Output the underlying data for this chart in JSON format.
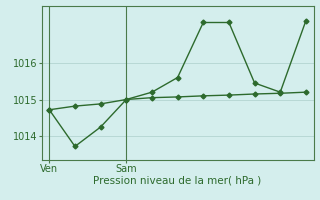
{
  "bg_color": "#d4eeed",
  "grid_color": "#b8d8d5",
  "line_color": "#2d6a2d",
  "line1_x": [
    0,
    1,
    2,
    3,
    4,
    5,
    6,
    7,
    8,
    9,
    10
  ],
  "line1_y": [
    1014.72,
    1014.82,
    1014.88,
    1015.0,
    1015.05,
    1015.07,
    1015.1,
    1015.12,
    1015.15,
    1015.17,
    1015.2
  ],
  "line2_x": [
    0,
    1,
    2,
    3,
    4,
    5,
    6,
    7,
    8,
    9,
    10
  ],
  "line2_y": [
    1014.72,
    1013.72,
    1014.25,
    1015.0,
    1015.2,
    1015.6,
    1017.1,
    1017.1,
    1015.45,
    1015.2,
    1017.15
  ],
  "ven_x": 0,
  "sam_x": 3,
  "xtick_positions": [
    0,
    3
  ],
  "xtick_labels": [
    "Ven",
    "Sam"
  ],
  "ytick_positions": [
    1014,
    1015,
    1016
  ],
  "ytick_labels": [
    "1014",
    "1015",
    "1016"
  ],
  "xlabel": "Pression niveau de la mer( hPa )",
  "ylim": [
    1013.35,
    1017.55
  ],
  "xlim": [
    -0.3,
    10.3
  ],
  "marker": "D",
  "markersize": 2.5,
  "linewidth": 1.0,
  "axis_color": "#4a7a4a",
  "xlabel_fontsize": 7.5,
  "tick_fontsize": 7
}
